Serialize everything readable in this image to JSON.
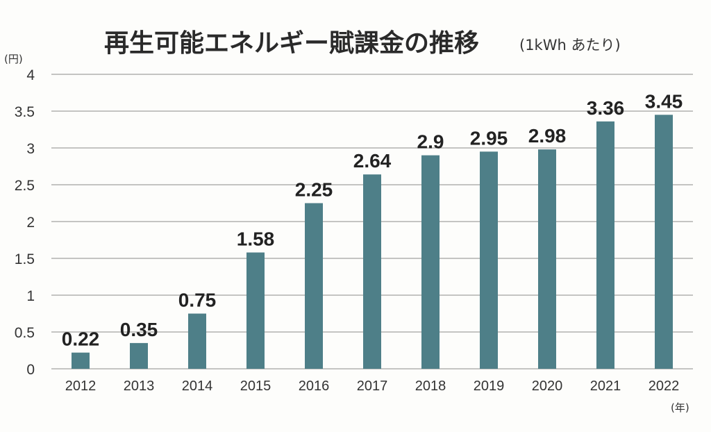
{
  "chart_data": {
    "type": "bar",
    "title": "再生可能エネルギー賦課金の推移",
    "subtitle": "(1kWh あたり)",
    "ylabel": "(円)",
    "xlabel": "(年)",
    "categories": [
      "2012",
      "2013",
      "2014",
      "2015",
      "2016",
      "2017",
      "2018",
      "2019",
      "2020",
      "2021",
      "2022"
    ],
    "values": [
      0.22,
      0.35,
      0.75,
      1.58,
      2.25,
      2.64,
      2.9,
      2.95,
      2.98,
      3.36,
      3.45
    ],
    "value_labels": [
      "0.22",
      "0.35",
      "0.75",
      "1.58",
      "2.25",
      "2.64",
      "2.9",
      "2.95",
      "2.98",
      "3.36",
      "3.45"
    ],
    "ylim": [
      0,
      4
    ],
    "yticks": [
      0,
      0.5,
      1,
      1.5,
      2,
      2.5,
      3,
      3.5,
      4
    ],
    "ytick_labels": [
      "0",
      "0.5",
      "1",
      "1.5",
      "2",
      "2.5",
      "3",
      "3.5",
      "4"
    ],
    "grid": true,
    "legend": "none",
    "bar_color": "#4e7f88"
  }
}
